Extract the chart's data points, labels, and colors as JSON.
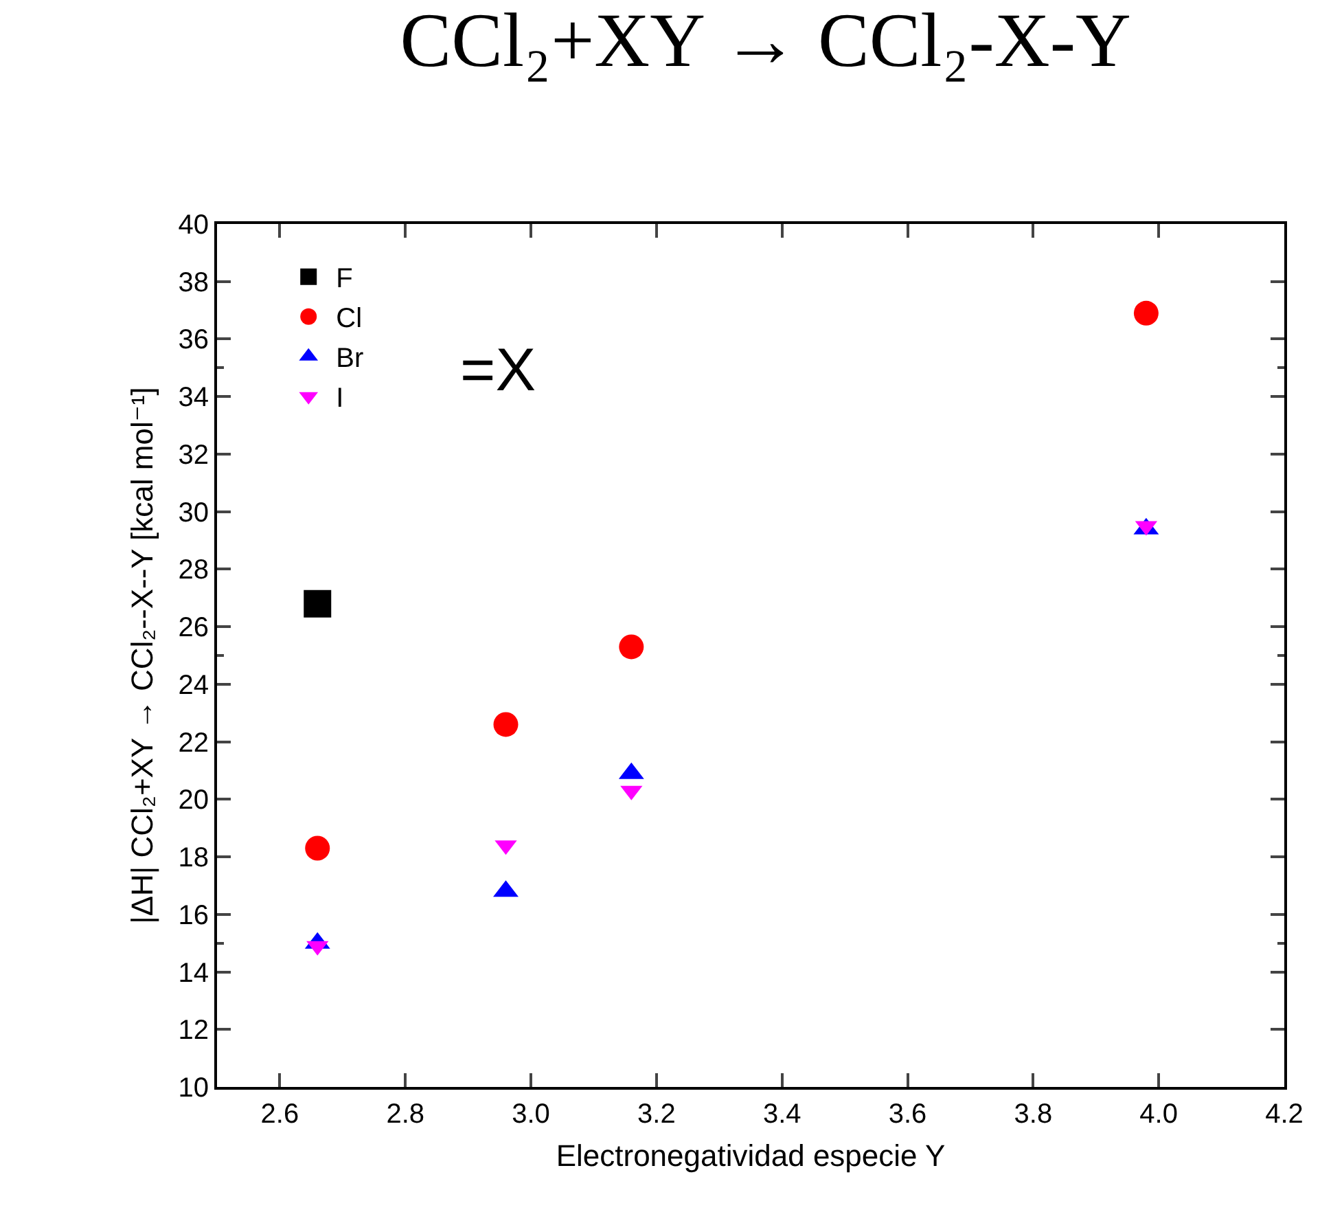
{
  "chart_data": {
    "type": "scatter",
    "title": "CCl₂+XY → CCl₂-X-Y",
    "xlabel": "Electronegatividad especie Y",
    "ylabel": "|ΔH| CCl₂+XY → CCl₂--X--Y [kcal mol⁻¹]",
    "annotations": [
      "=X"
    ],
    "xlim": [
      2.5,
      4.2
    ],
    "xticks": [
      2.6,
      2.8,
      {
        "value": 3,
        "label": "3.0"
      },
      3.2,
      3.4,
      3.6,
      3.8,
      {
        "value": 4,
        "label": "4.0"
      },
      4.2
    ],
    "ylim": [
      10,
      40
    ],
    "yticks": [
      10,
      12,
      14,
      16,
      18,
      20,
      22,
      24,
      26,
      28,
      30,
      32,
      34,
      36,
      38,
      40
    ],
    "grid": false,
    "legend": "top left",
    "series": [
      {
        "name": "F",
        "color": "#000000",
        "marker": "square",
        "x": [
          2.66
        ],
        "values": [
          26.8
        ]
      },
      {
        "name": "Cl",
        "color": "#ff0000",
        "marker": "circle",
        "x": [
          2.66,
          2.96,
          3.16,
          3.98
        ],
        "values": [
          18.3,
          22.6,
          25.3,
          36.9
        ]
      },
      {
        "name": "Br",
        "color": "#0000ff",
        "marker": "triangle",
        "x": [
          2.66,
          2.96,
          3.16,
          3.98
        ],
        "values": [
          15.0,
          16.8,
          20.9,
          29.4
        ]
      },
      {
        "name": "I",
        "color": "#ff00ff",
        "marker": "triangle-down",
        "x": [
          2.66,
          2.96,
          3.16,
          3.98
        ],
        "values": [
          14.9,
          18.4,
          20.3,
          29.5
        ]
      }
    ]
  }
}
